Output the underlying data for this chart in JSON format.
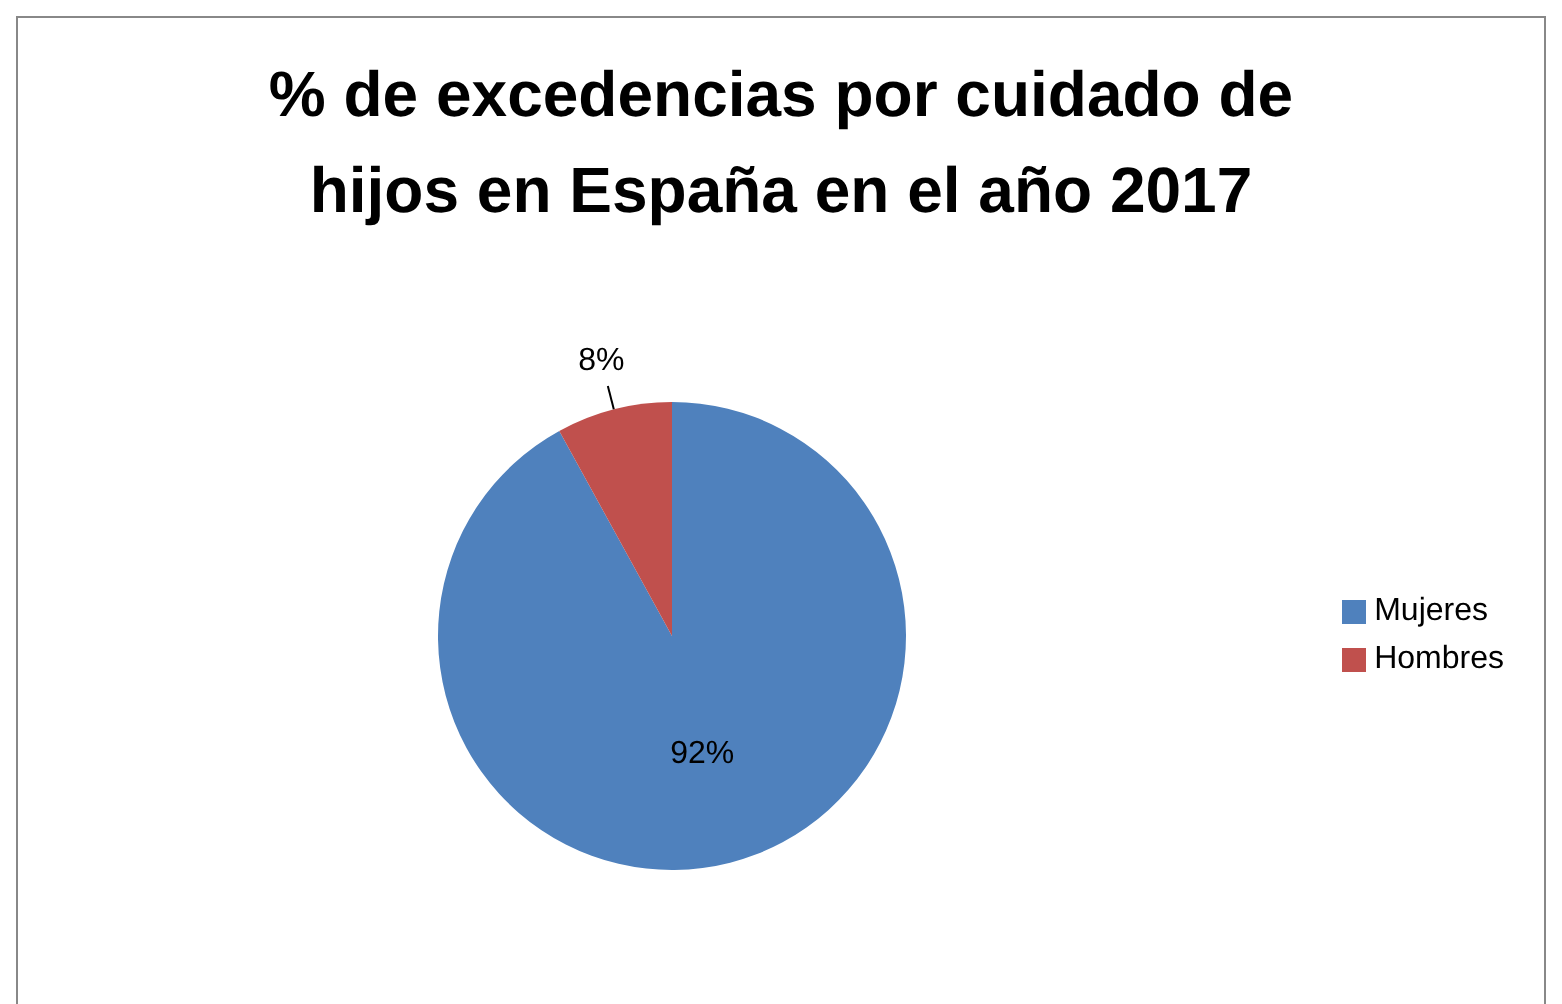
{
  "chart_data": {
    "type": "pie",
    "title": "% de excedencias por cuidado de hijos en España en el año 2017",
    "categories": [
      "Mujeres",
      "Hombres"
    ],
    "values": [
      92,
      8
    ],
    "colors": [
      "#4f81bd",
      "#c0504d"
    ],
    "value_labels": [
      "92%",
      "8%"
    ],
    "legend": "right"
  }
}
